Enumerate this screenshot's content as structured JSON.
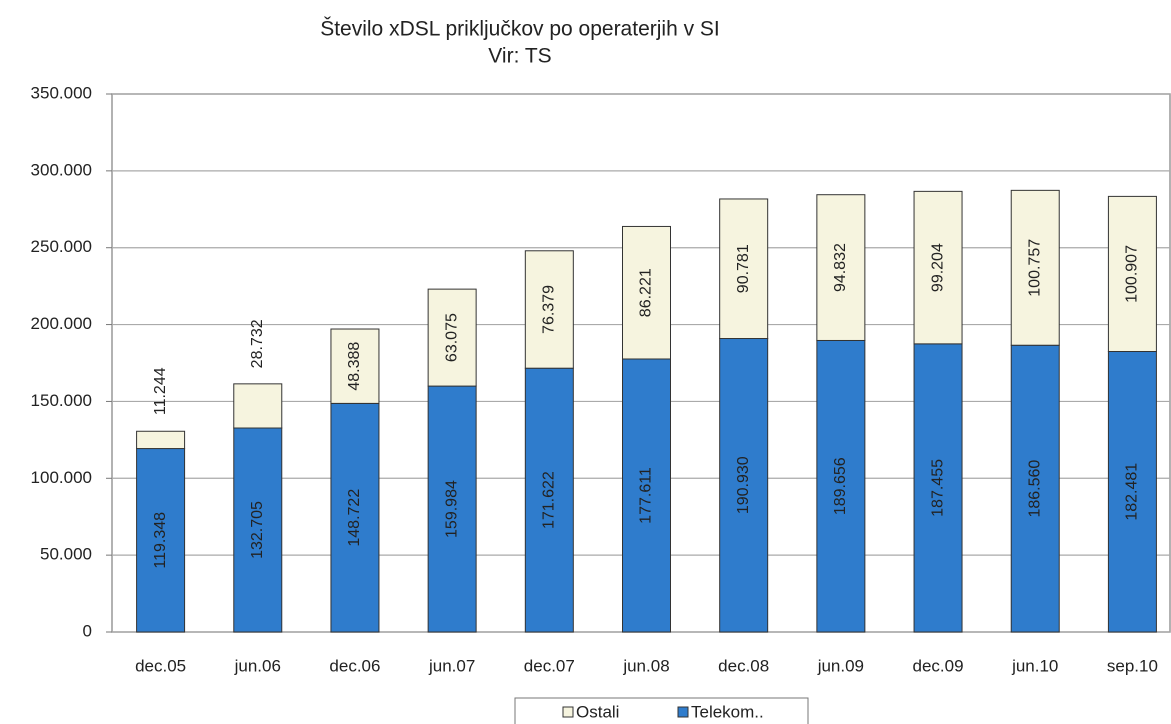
{
  "chart_data": {
    "type": "stacked_bar",
    "title": "Število xDSL priključkov po operaterjih v SI",
    "subtitle": "Vir: TS",
    "categories": [
      "dec.05",
      "jun.06",
      "dec.06",
      "jun.07",
      "dec.07",
      "jun.08",
      "dec.08",
      "jun.09",
      "dec.09",
      "jun.10",
      "sep.10"
    ],
    "series": [
      {
        "name": "Telekom..",
        "color": "#2f7ccc",
        "values": [
          119348,
          132705,
          148722,
          159984,
          171622,
          177611,
          190930,
          189656,
          187455,
          186560,
          182481
        ],
        "value_labels": [
          "119.348",
          "132.705",
          "148.722",
          "159.984",
          "171.622",
          "177.611",
          "190.930",
          "189.656",
          "187.455",
          "186.560",
          "182.481"
        ]
      },
      {
        "name": "Ostali",
        "color": "#f6f4df",
        "values": [
          11244,
          28732,
          48388,
          63075,
          76379,
          86221,
          90781,
          94832,
          99204,
          100757,
          100907
        ],
        "value_labels": [
          "11.244",
          "28.732",
          "48.388",
          "63.075",
          "76.379",
          "86.221",
          "90.781",
          "94.832",
          "99.204",
          "100.757",
          "100.907"
        ]
      }
    ],
    "ylim": [
      0,
      350000
    ],
    "yticks": [
      0,
      {
        "value": 50000,
        "label": "50.000"
      },
      {
        "value": 100000,
        "label": "100.000"
      },
      {
        "value": 150000,
        "label": "150.000"
      },
      {
        "value": 200000,
        "label": "200.000"
      },
      {
        "value": 250000,
        "label": "250.000"
      },
      {
        "value": 300000,
        "label": "300.000"
      },
      {
        "value": 350000,
        "label": "350.000"
      }
    ],
    "grid": true,
    "legend": "bottom"
  }
}
